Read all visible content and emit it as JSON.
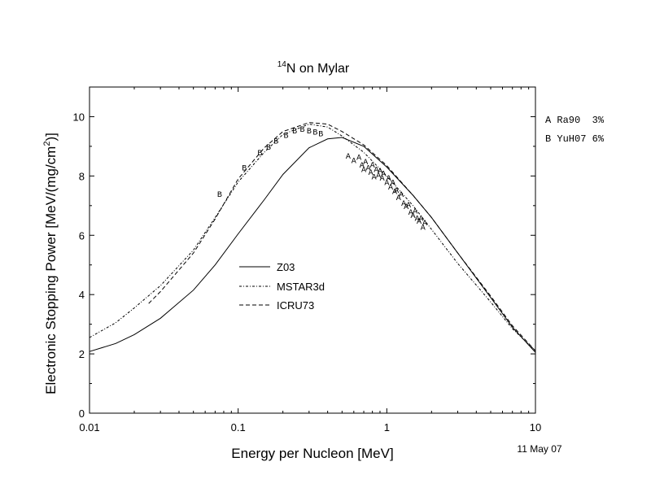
{
  "chart_data": {
    "type": "line",
    "title_sup": "14",
    "title": "N on Mylar",
    "xlabel": "Energy per Nucleon [MeV]",
    "ylabel": "Electronic Stopping Power [MeV/(mg/cm",
    "ylabel_sup": "2",
    "ylabel_end": ")]",
    "x_scale": "log",
    "xlim": [
      0.01,
      10
    ],
    "ylim": [
      0,
      11
    ],
    "x_ticks": [
      0.01,
      0.1,
      1,
      10
    ],
    "x_tick_labels": [
      "0.01",
      "0.1",
      "1",
      "10"
    ],
    "y_ticks": [
      0,
      2,
      4,
      6,
      8,
      10
    ],
    "y_tick_labels": [
      "0",
      "2",
      "4",
      "6",
      "8",
      "10"
    ],
    "date": "11 May 07",
    "legend_position": "center-left",
    "series": [
      {
        "name": "Z03",
        "style": "solid",
        "x": [
          0.01,
          0.015,
          0.02,
          0.03,
          0.05,
          0.07,
          0.1,
          0.15,
          0.2,
          0.3,
          0.4,
          0.5,
          0.7,
          1.0,
          1.5,
          2.0,
          3.0,
          5.0,
          7.0,
          10.0
        ],
        "y": [
          2.08,
          2.35,
          2.65,
          3.2,
          4.15,
          5.0,
          6.05,
          7.2,
          8.05,
          8.95,
          9.25,
          9.3,
          9.0,
          8.3,
          7.35,
          6.6,
          5.4,
          3.9,
          2.9,
          2.05
        ]
      },
      {
        "name": "MSTAR3d",
        "style": "dash-dot",
        "x": [
          0.01,
          0.015,
          0.02,
          0.03,
          0.05,
          0.07,
          0.1,
          0.15,
          0.2,
          0.3,
          0.4,
          0.5,
          0.7,
          1.0,
          1.5,
          2.0,
          3.0,
          5.0,
          7.0,
          10.0
        ],
        "y": [
          2.55,
          3.05,
          3.55,
          4.3,
          5.5,
          6.6,
          7.8,
          8.8,
          9.4,
          9.75,
          9.65,
          9.35,
          8.8,
          8.0,
          7.0,
          6.2,
          5.05,
          3.75,
          2.85,
          2.1
        ]
      },
      {
        "name": "ICRU73",
        "style": "dashed",
        "x": [
          0.025,
          0.03,
          0.05,
          0.07,
          0.1,
          0.15,
          0.2,
          0.3,
          0.4,
          0.5,
          0.7,
          1.0,
          1.5,
          2.0,
          3.0,
          5.0,
          7.0,
          10.0
        ],
        "y": [
          3.7,
          4.1,
          5.4,
          6.55,
          7.9,
          8.95,
          9.5,
          9.8,
          9.75,
          9.5,
          9.05,
          8.35,
          7.35,
          6.6,
          5.4,
          3.95,
          2.95,
          2.1
        ]
      }
    ],
    "measurements": [
      {
        "label": "A",
        "ref": "Ra90",
        "uncertainty": "3%",
        "x": [
          0.55,
          0.6,
          0.65,
          0.68,
          0.7,
          0.72,
          0.75,
          0.78,
          0.8,
          0.82,
          0.85,
          0.88,
          0.9,
          0.93,
          0.95,
          1.0,
          1.03,
          1.06,
          1.1,
          1.13,
          1.16,
          1.2,
          1.25,
          1.3,
          1.35,
          1.4,
          1.45,
          1.5,
          1.55,
          1.6,
          1.65,
          1.7,
          1.75,
          1.8
        ],
        "y": [
          8.7,
          8.55,
          8.65,
          8.4,
          8.25,
          8.5,
          8.3,
          8.15,
          8.4,
          8.0,
          8.25,
          8.05,
          8.2,
          7.95,
          8.1,
          7.8,
          7.95,
          7.65,
          7.8,
          7.5,
          7.55,
          7.3,
          7.4,
          7.1,
          7.0,
          7.05,
          6.8,
          6.7,
          6.85,
          6.6,
          6.5,
          6.6,
          6.3,
          6.45
        ]
      },
      {
        "label": "B",
        "ref": "YuH07",
        "uncertainty": "6%",
        "x": [
          0.075,
          0.11,
          0.14,
          0.16,
          0.18,
          0.21,
          0.24,
          0.27,
          0.3,
          0.33,
          0.36
        ],
        "y": [
          7.4,
          8.3,
          8.8,
          9.0,
          9.2,
          9.4,
          9.55,
          9.6,
          9.55,
          9.5,
          9.45
        ]
      }
    ]
  }
}
